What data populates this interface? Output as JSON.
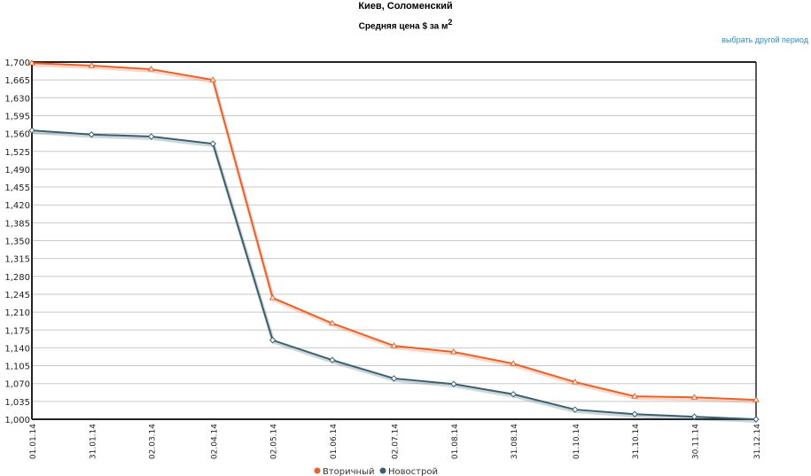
{
  "chart_data": {
    "type": "line",
    "title": "Киев, Соломенский",
    "subtitle_main": "Средняя цена $ за м",
    "subtitle_sup": "2",
    "x": [
      "01.01.14",
      "31.01.14",
      "02.03.14",
      "02.04.14",
      "02.05.14",
      "01.06.14",
      "02.07.14",
      "01.08.14",
      "31.08.14",
      "01.10.14",
      "31.10.14",
      "30.11.14",
      "31.12.14"
    ],
    "x_iso": [
      "2014-01-01",
      "2014-01-31",
      "2014-03-02",
      "2014-04-02",
      "2014-05-02",
      "2014-06-01",
      "2014-07-02",
      "2014-08-01",
      "2014-08-31",
      "2014-10-01",
      "2014-10-31",
      "2014-11-30",
      "2014-12-31"
    ],
    "yticks": [
      "1,000",
      "1,035",
      "1,070",
      "1,105",
      "1,140",
      "1,175",
      "1,210",
      "1,245",
      "1,280",
      "1,315",
      "1,350",
      "1,385",
      "1,420",
      "1,455",
      "1,490",
      "1,525",
      "1,560",
      "1,595",
      "1,630",
      "1,665",
      "1,700"
    ],
    "ylim": [
      1000,
      1700
    ],
    "grid": true,
    "legend_placement": "bottom",
    "series": [
      {
        "name": "Вторичный",
        "color": "#e8622a",
        "marker": "triangle",
        "values": [
          1698,
          1693,
          1686,
          1665,
          1238,
          1188,
          1144,
          1132,
          1109,
          1073,
          1045,
          1043,
          1038
        ]
      },
      {
        "name": "Новострой",
        "color": "#3d5f6e",
        "marker": "diamond",
        "values": [
          1566,
          1558,
          1554,
          1540,
          1155,
          1116,
          1080,
          1069,
          1049,
          1019,
          1010,
          1005,
          1000
        ]
      }
    ]
  },
  "controls": {
    "period_link": "выбрать другой период"
  }
}
